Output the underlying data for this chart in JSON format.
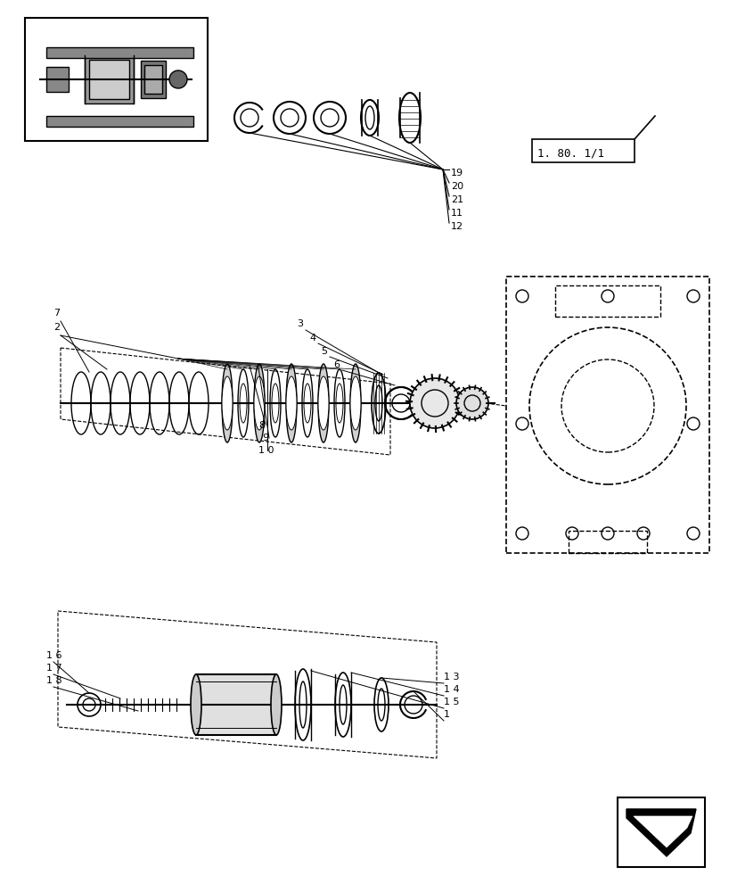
{
  "bg_color": "#ffffff",
  "line_color": "#000000",
  "fig_width": 8.28,
  "fig_height": 10.0,
  "ref_label": "1.80.1/1",
  "part_numbers_top": [
    "19",
    "20",
    "21",
    "11",
    "12"
  ],
  "part_numbers_mid": [
    "3",
    "4",
    "5",
    "6",
    "7",
    "2",
    "8",
    "9",
    "10"
  ],
  "part_numbers_bot": [
    "16",
    "17",
    "18",
    "13",
    "14",
    "15",
    "1"
  ]
}
